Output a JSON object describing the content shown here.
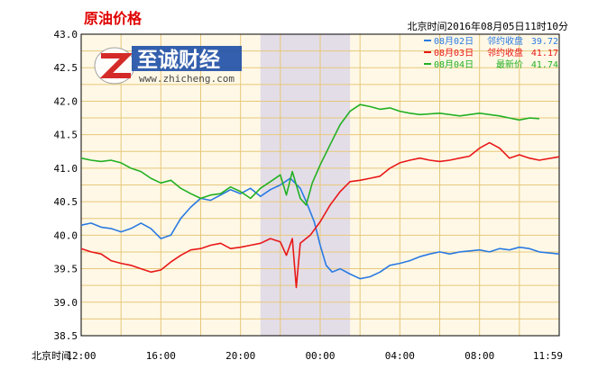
{
  "chart_data": {
    "type": "line",
    "title": "原油价格",
    "timestamp": "北京时间2016年08月05日11时10分",
    "watermark": {
      "brand": "至诚财经",
      "url": "www.zhicheng.com"
    },
    "xlabel": "北京时间",
    "x_ticks": [
      "12:00",
      "16:00",
      "20:00",
      "00:00",
      "04:00",
      "08:00",
      "11:59"
    ],
    "x_tick_hours": [
      0,
      4,
      8,
      12,
      16,
      20,
      24
    ],
    "y_ticks": [
      "43.0",
      "42.5",
      "42.0",
      "41.5",
      "41.0",
      "40.5",
      "40.0",
      "39.5",
      "39.0",
      "38.5"
    ],
    "ylim": [
      38.5,
      43.0
    ],
    "xlim_hours": [
      0,
      24
    ],
    "grid": true,
    "legend_position": "top-right",
    "highlight_band_hours": [
      9.0,
      13.5
    ],
    "colors": {
      "background": "#fff8e6",
      "grid": "#e6c87a",
      "band": "#e3dde8",
      "title": "#e00000"
    },
    "series": [
      {
        "name": "08月02日",
        "label": "邻约收盘",
        "value": "39.72",
        "color": "#2a7ae2",
        "points": [
          [
            0,
            40.15
          ],
          [
            0.5,
            40.18
          ],
          [
            1,
            40.12
          ],
          [
            1.5,
            40.1
          ],
          [
            2,
            40.05
          ],
          [
            2.5,
            40.1
          ],
          [
            3,
            40.18
          ],
          [
            3.5,
            40.1
          ],
          [
            4,
            39.95
          ],
          [
            4.5,
            40.0
          ],
          [
            5,
            40.25
          ],
          [
            5.5,
            40.42
          ],
          [
            6,
            40.55
          ],
          [
            6.5,
            40.52
          ],
          [
            7,
            40.6
          ],
          [
            7.5,
            40.68
          ],
          [
            8,
            40.62
          ],
          [
            8.5,
            40.7
          ],
          [
            9,
            40.58
          ],
          [
            9.5,
            40.68
          ],
          [
            10,
            40.75
          ],
          [
            10.5,
            40.85
          ],
          [
            11,
            40.7
          ],
          [
            11.3,
            40.5
          ],
          [
            11.7,
            40.2
          ],
          [
            12,
            39.85
          ],
          [
            12.3,
            39.55
          ],
          [
            12.6,
            39.45
          ],
          [
            13,
            39.5
          ],
          [
            13.5,
            39.42
          ],
          [
            14,
            39.35
          ],
          [
            14.5,
            39.38
          ],
          [
            15,
            39.45
          ],
          [
            15.5,
            39.55
          ],
          [
            16,
            39.58
          ],
          [
            16.5,
            39.62
          ],
          [
            17,
            39.68
          ],
          [
            17.5,
            39.72
          ],
          [
            18,
            39.75
          ],
          [
            18.5,
            39.72
          ],
          [
            19,
            39.75
          ],
          [
            20,
            39.78
          ],
          [
            20.5,
            39.75
          ],
          [
            21,
            39.8
          ],
          [
            21.5,
            39.78
          ],
          [
            22,
            39.82
          ],
          [
            22.5,
            39.8
          ],
          [
            23,
            39.75
          ],
          [
            24,
            39.72
          ]
        ]
      },
      {
        "name": "08月03日",
        "label": "邻约收盘",
        "value": "41.17",
        "color": "#e81818",
        "points": [
          [
            0,
            39.8
          ],
          [
            0.5,
            39.75
          ],
          [
            1,
            39.72
          ],
          [
            1.5,
            39.62
          ],
          [
            2,
            39.58
          ],
          [
            2.5,
            39.55
          ],
          [
            3,
            39.5
          ],
          [
            3.5,
            39.45
          ],
          [
            4,
            39.48
          ],
          [
            4.5,
            39.6
          ],
          [
            5,
            39.7
          ],
          [
            5.5,
            39.78
          ],
          [
            6,
            39.8
          ],
          [
            6.5,
            39.85
          ],
          [
            7,
            39.88
          ],
          [
            7.5,
            39.8
          ],
          [
            8,
            39.82
          ],
          [
            8.5,
            39.85
          ],
          [
            9,
            39.88
          ],
          [
            9.5,
            39.95
          ],
          [
            10,
            39.9
          ],
          [
            10.3,
            39.7
          ],
          [
            10.6,
            39.95
          ],
          [
            10.8,
            39.22
          ],
          [
            11,
            39.88
          ],
          [
            11.5,
            40.0
          ],
          [
            12,
            40.2
          ],
          [
            12.5,
            40.45
          ],
          [
            13,
            40.65
          ],
          [
            13.5,
            40.8
          ],
          [
            14,
            40.82
          ],
          [
            14.5,
            40.85
          ],
          [
            15,
            40.88
          ],
          [
            15.5,
            41.0
          ],
          [
            16,
            41.08
          ],
          [
            16.5,
            41.12
          ],
          [
            17,
            41.15
          ],
          [
            17.5,
            41.12
          ],
          [
            18,
            41.1
          ],
          [
            18.5,
            41.12
          ],
          [
            19,
            41.15
          ],
          [
            19.5,
            41.18
          ],
          [
            20,
            41.3
          ],
          [
            20.5,
            41.38
          ],
          [
            21,
            41.3
          ],
          [
            21.5,
            41.15
          ],
          [
            22,
            41.2
          ],
          [
            22.5,
            41.15
          ],
          [
            23,
            41.12
          ],
          [
            24,
            41.17
          ]
        ]
      },
      {
        "name": "08月04日",
        "label": "最新价",
        "value": "41.74",
        "color": "#22b022",
        "points": [
          [
            0,
            41.15
          ],
          [
            0.5,
            41.12
          ],
          [
            1,
            41.1
          ],
          [
            1.5,
            41.12
          ],
          [
            2,
            41.08
          ],
          [
            2.5,
            41.0
          ],
          [
            3,
            40.95
          ],
          [
            3.5,
            40.85
          ],
          [
            4,
            40.78
          ],
          [
            4.5,
            40.82
          ],
          [
            5,
            40.7
          ],
          [
            5.5,
            40.62
          ],
          [
            6,
            40.55
          ],
          [
            6.5,
            40.6
          ],
          [
            7,
            40.62
          ],
          [
            7.5,
            40.72
          ],
          [
            8,
            40.65
          ],
          [
            8.5,
            40.55
          ],
          [
            9,
            40.7
          ],
          [
            9.5,
            40.8
          ],
          [
            10,
            40.9
          ],
          [
            10.3,
            40.6
          ],
          [
            10.6,
            40.95
          ],
          [
            11,
            40.55
          ],
          [
            11.3,
            40.45
          ],
          [
            11.6,
            40.78
          ],
          [
            12,
            41.05
          ],
          [
            12.5,
            41.35
          ],
          [
            13,
            41.65
          ],
          [
            13.5,
            41.85
          ],
          [
            14,
            41.95
          ],
          [
            14.5,
            41.92
          ],
          [
            15,
            41.88
          ],
          [
            15.5,
            41.9
          ],
          [
            16,
            41.85
          ],
          [
            16.5,
            41.82
          ],
          [
            17,
            41.8
          ],
          [
            18,
            41.82
          ],
          [
            19,
            41.78
          ],
          [
            19.5,
            41.8
          ],
          [
            20,
            41.82
          ],
          [
            20.5,
            41.8
          ],
          [
            21,
            41.78
          ],
          [
            21.5,
            41.75
          ],
          [
            22,
            41.72
          ],
          [
            22.5,
            41.75
          ],
          [
            23,
            41.74
          ]
        ]
      }
    ]
  }
}
